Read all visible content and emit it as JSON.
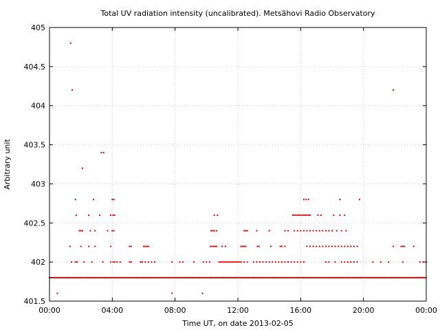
{
  "chart_data": {
    "type": "scatter",
    "title": "Total UV radiation intensity (uncalibrated). Metsähovi Radio Observatory",
    "xlabel": "Time UT, on date 2013-02-05",
    "ylabel": "Arbitrary unit",
    "x_unit": "hours",
    "xlim": [
      0,
      24
    ],
    "ylim": [
      401.5,
      405
    ],
    "x_ticks": [
      0,
      4,
      8,
      12,
      16,
      20,
      24
    ],
    "x_tick_labels": [
      "00:00",
      "04:00",
      "08:00",
      "12:00",
      "16:00",
      "20:00",
      "00:00"
    ],
    "y_ticks": [
      401.5,
      402,
      402.5,
      403,
      403.5,
      404,
      404.5,
      405
    ],
    "y_tick_labels": [
      "401.5",
      "402",
      "402.5",
      "403",
      "403.5",
      "404",
      "404.5",
      "405"
    ],
    "grid": true,
    "marker_color": "#e00000",
    "baseline": {
      "value": 401.8,
      "x_start": 0.0,
      "x_end": 24.0,
      "step": 0.083
    },
    "series": [
      {
        "points": [
          [
            0.5,
            401.6
          ],
          [
            7.8,
            401.6
          ],
          [
            9.75,
            401.6
          ],
          [
            1.35,
            404.8
          ],
          [
            1.45,
            404.2
          ],
          [
            21.9,
            404.2
          ],
          [
            3.3,
            403.4
          ],
          [
            3.45,
            403.4
          ],
          [
            2.1,
            403.2
          ],
          [
            1.65,
            402.8
          ],
          [
            2.8,
            402.8
          ],
          [
            4.0,
            402.8
          ],
          [
            4.1,
            402.8
          ],
          [
            18.5,
            402.8
          ],
          [
            19.75,
            402.8
          ],
          [
            1.7,
            402.6
          ],
          [
            2.5,
            402.6
          ],
          [
            3.2,
            402.6
          ],
          [
            3.9,
            402.6
          ],
          [
            4.05,
            402.6
          ],
          [
            4.15,
            402.6
          ],
          [
            10.5,
            402.6
          ],
          [
            10.7,
            402.6
          ],
          [
            1.9,
            402.4
          ],
          [
            2.0,
            402.4
          ],
          [
            2.1,
            402.4
          ],
          [
            2.6,
            402.4
          ],
          [
            2.9,
            402.4
          ],
          [
            3.7,
            402.4
          ],
          [
            4.0,
            402.4
          ],
          [
            4.1,
            402.4
          ],
          [
            10.3,
            402.4
          ],
          [
            10.4,
            402.4
          ],
          [
            10.5,
            402.4
          ],
          [
            10.65,
            402.4
          ],
          [
            12.4,
            402.4
          ],
          [
            12.5,
            402.4
          ],
          [
            12.6,
            402.4
          ],
          [
            13.2,
            402.4
          ],
          [
            14.0,
            402.4
          ],
          [
            1.3,
            402.2
          ],
          [
            2.0,
            402.2
          ],
          [
            2.5,
            402.2
          ],
          [
            2.9,
            402.2
          ],
          [
            3.9,
            402.2
          ],
          [
            5.1,
            402.2
          ],
          [
            5.2,
            402.2
          ],
          [
            6.0,
            402.2
          ],
          [
            6.1,
            402.2
          ],
          [
            6.2,
            402.2
          ],
          [
            6.3,
            402.2
          ],
          [
            10.25,
            402.2
          ],
          [
            10.35,
            402.2
          ],
          [
            10.45,
            402.2
          ],
          [
            10.55,
            402.2
          ],
          [
            10.65,
            402.2
          ],
          [
            11.0,
            402.2
          ],
          [
            11.2,
            402.2
          ],
          [
            12.2,
            402.2
          ],
          [
            12.3,
            402.2
          ],
          [
            12.4,
            402.2
          ],
          [
            12.5,
            402.2
          ],
          [
            13.25,
            402.2
          ],
          [
            13.35,
            402.2
          ],
          [
            14.1,
            402.2
          ],
          [
            14.7,
            402.2
          ],
          [
            14.8,
            402.2
          ],
          [
            15.0,
            402.2
          ],
          [
            21.9,
            402.2
          ],
          [
            22.4,
            402.2
          ],
          [
            22.5,
            402.2
          ],
          [
            22.6,
            402.2
          ],
          [
            23.2,
            402.2
          ],
          [
            1.4,
            402.0
          ],
          [
            1.65,
            402.0
          ],
          [
            1.75,
            402.0
          ],
          [
            2.2,
            402.0
          ],
          [
            2.7,
            402.0
          ],
          [
            3.4,
            402.0
          ],
          [
            3.9,
            402.0
          ],
          [
            4.05,
            402.0
          ],
          [
            4.15,
            402.0
          ],
          [
            4.3,
            402.0
          ],
          [
            4.5,
            402.0
          ],
          [
            5.1,
            402.0
          ],
          [
            5.2,
            402.0
          ],
          [
            5.8,
            402.0
          ],
          [
            5.9,
            402.0
          ],
          [
            6.1,
            402.0
          ],
          [
            6.3,
            402.0
          ],
          [
            6.5,
            402.0
          ],
          [
            6.7,
            402.0
          ],
          [
            7.8,
            402.0
          ],
          [
            8.3,
            402.0
          ],
          [
            8.5,
            402.0
          ],
          [
            9.2,
            402.0
          ],
          [
            9.8,
            402.0
          ],
          [
            10.0,
            402.0
          ],
          [
            10.2,
            402.0
          ],
          [
            10.8,
            402.0
          ],
          [
            10.9,
            402.0
          ],
          [
            11.0,
            402.0
          ],
          [
            11.1,
            402.0
          ],
          [
            11.2,
            402.0
          ],
          [
            11.3,
            402.0
          ],
          [
            11.4,
            402.0
          ],
          [
            11.5,
            402.0
          ],
          [
            11.6,
            402.0
          ],
          [
            11.7,
            402.0
          ],
          [
            11.8,
            402.0
          ],
          [
            11.9,
            402.0
          ],
          [
            12.0,
            402.0
          ],
          [
            12.1,
            402.0
          ],
          [
            12.2,
            402.0
          ],
          [
            12.4,
            402.0
          ],
          [
            12.6,
            402.0
          ],
          [
            13.0,
            402.0
          ],
          [
            13.2,
            402.0
          ],
          [
            13.4,
            402.0
          ],
          [
            13.6,
            402.0
          ],
          [
            13.8,
            402.0
          ],
          [
            14.0,
            402.0
          ],
          [
            14.2,
            402.0
          ],
          [
            14.4,
            402.0
          ],
          [
            14.6,
            402.0
          ],
          [
            14.8,
            402.0
          ],
          [
            15.0,
            402.0
          ],
          [
            15.2,
            402.0
          ],
          [
            17.6,
            402.0
          ],
          [
            17.8,
            402.0
          ],
          [
            18.2,
            402.0
          ],
          [
            18.6,
            402.0
          ],
          [
            18.8,
            402.0
          ],
          [
            19.0,
            402.0
          ],
          [
            19.2,
            402.0
          ],
          [
            19.4,
            402.0
          ],
          [
            19.6,
            402.0
          ],
          [
            20.6,
            402.0
          ],
          [
            21.1,
            402.0
          ],
          [
            21.6,
            402.0
          ],
          [
            22.5,
            402.0
          ],
          [
            23.6,
            402.0
          ],
          [
            23.8,
            402.0
          ],
          [
            24.0,
            402.0
          ],
          [
            11.0,
            401.8
          ],
          [
            13.0,
            401.8
          ],
          [
            14.3,
            401.8
          ],
          [
            16.2,
            402.8
          ],
          [
            16.35,
            402.8
          ],
          [
            16.5,
            402.8
          ],
          [
            15.5,
            402.6
          ],
          [
            15.6,
            402.6
          ],
          [
            15.7,
            402.6
          ],
          [
            15.8,
            402.6
          ],
          [
            15.9,
            402.6
          ],
          [
            16.0,
            402.6
          ],
          [
            16.1,
            402.6
          ],
          [
            16.2,
            402.6
          ],
          [
            16.3,
            402.6
          ],
          [
            16.4,
            402.6
          ],
          [
            16.5,
            402.6
          ],
          [
            16.6,
            402.6
          ],
          [
            17.1,
            402.6
          ],
          [
            17.3,
            402.6
          ],
          [
            18.1,
            402.6
          ],
          [
            18.5,
            402.6
          ],
          [
            18.8,
            402.6
          ],
          [
            15.0,
            402.4
          ],
          [
            15.2,
            402.4
          ],
          [
            15.6,
            402.4
          ],
          [
            15.8,
            402.4
          ],
          [
            16.0,
            402.4
          ],
          [
            16.2,
            402.4
          ],
          [
            16.4,
            402.4
          ],
          [
            16.6,
            402.4
          ],
          [
            16.8,
            402.4
          ],
          [
            17.0,
            402.4
          ],
          [
            17.2,
            402.4
          ],
          [
            17.4,
            402.4
          ],
          [
            17.6,
            402.4
          ],
          [
            17.8,
            402.4
          ],
          [
            18.0,
            402.4
          ],
          [
            18.3,
            402.4
          ],
          [
            18.6,
            402.4
          ],
          [
            18.9,
            402.4
          ],
          [
            16.4,
            402.2
          ],
          [
            16.6,
            402.2
          ],
          [
            16.8,
            402.2
          ],
          [
            17.0,
            402.2
          ],
          [
            17.2,
            402.2
          ],
          [
            17.4,
            402.2
          ],
          [
            17.6,
            402.2
          ],
          [
            17.8,
            402.2
          ],
          [
            18.0,
            402.2
          ],
          [
            18.2,
            402.2
          ],
          [
            18.4,
            402.2
          ],
          [
            18.6,
            402.2
          ],
          [
            18.8,
            402.2
          ],
          [
            19.0,
            402.2
          ],
          [
            19.2,
            402.2
          ],
          [
            19.4,
            402.2
          ],
          [
            19.6,
            402.2
          ],
          [
            15.2,
            402.0
          ],
          [
            15.4,
            402.0
          ],
          [
            15.6,
            402.0
          ],
          [
            15.8,
            402.0
          ],
          [
            16.0,
            402.0
          ],
          [
            16.2,
            402.0
          ],
          [
            19.6,
            401.8
          ],
          [
            19.8,
            401.8
          ]
        ]
      }
    ]
  }
}
